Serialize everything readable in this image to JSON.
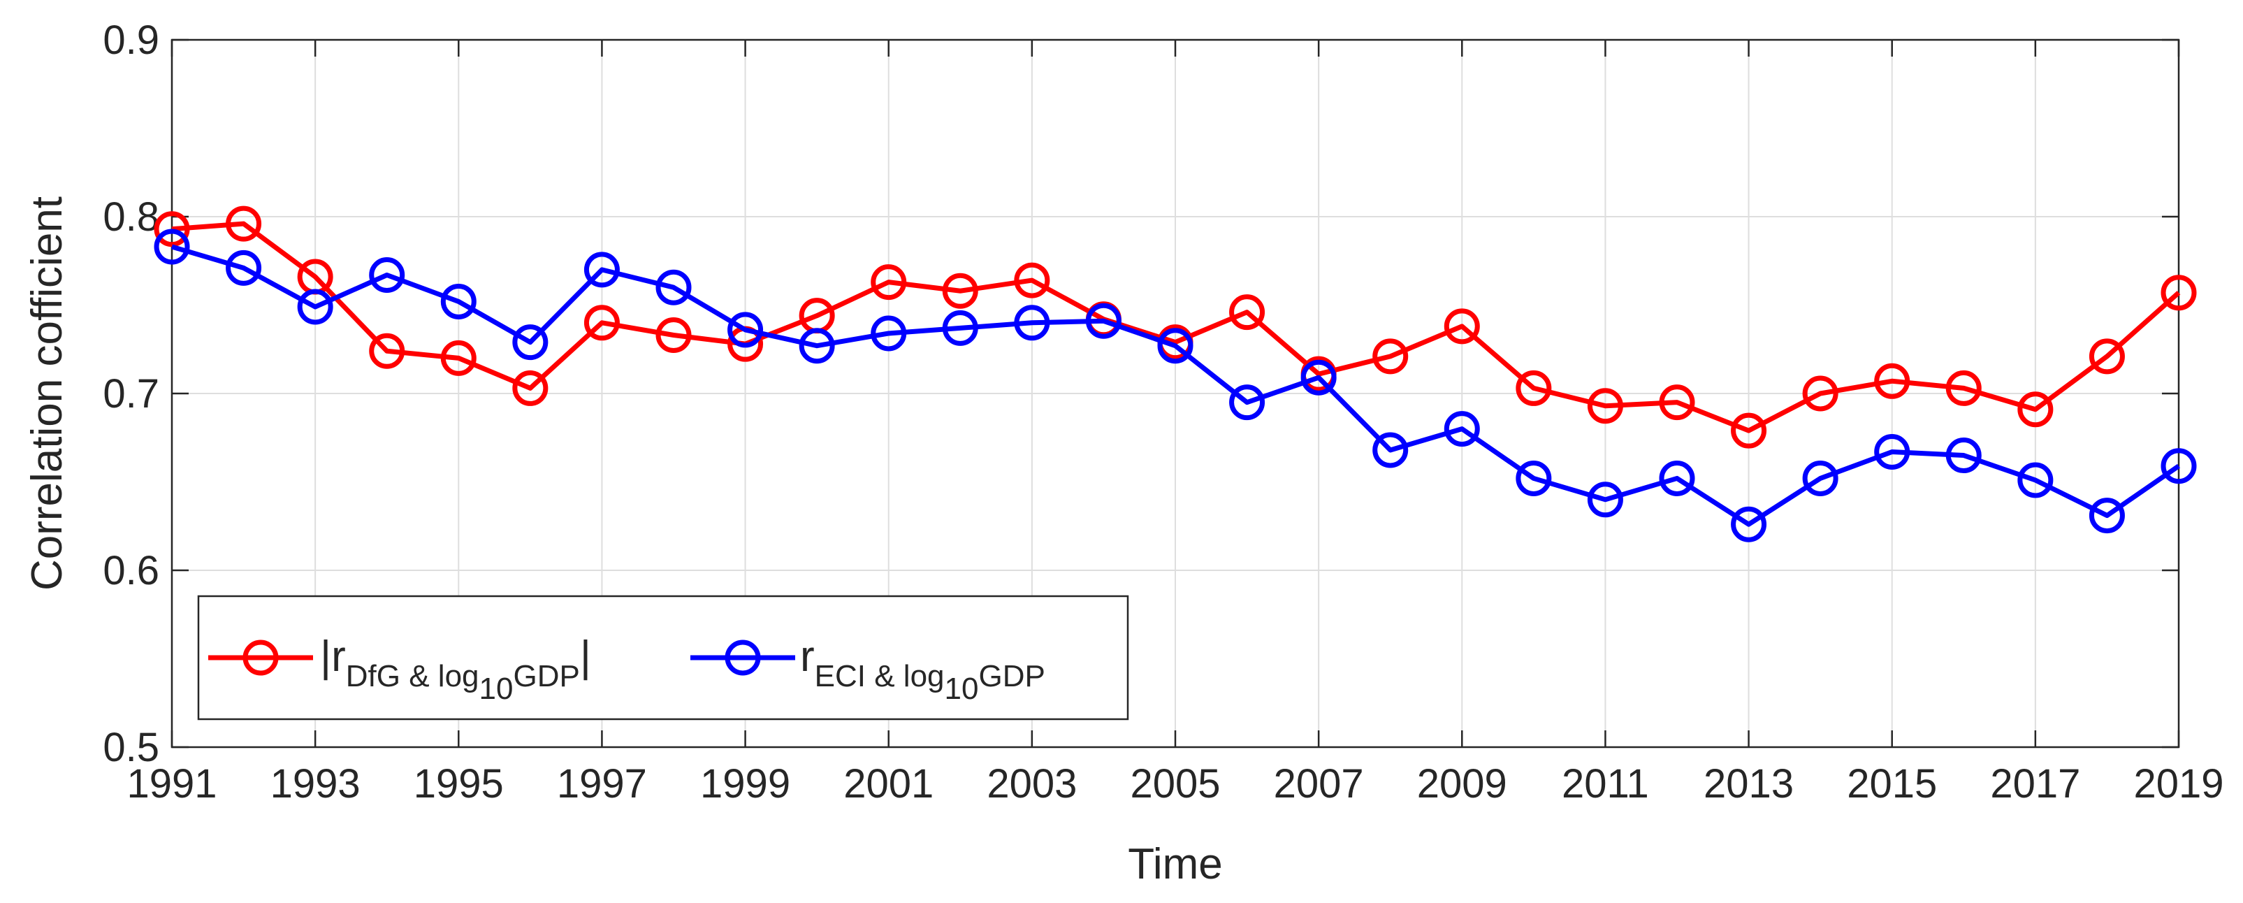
{
  "chart_data": {
    "type": "line",
    "xlabel": "Time",
    "ylabel": "Correlation cofficient",
    "xlim": [
      1991,
      2019
    ],
    "ylim": [
      0.5,
      0.9
    ],
    "grid": true,
    "legend_position": "bottom-left",
    "x": [
      1991,
      1992,
      1993,
      1994,
      1995,
      1996,
      1997,
      1998,
      1999,
      2000,
      2001,
      2002,
      2003,
      2004,
      2005,
      2006,
      2007,
      2008,
      2009,
      2010,
      2011,
      2012,
      2013,
      2014,
      2015,
      2016,
      2017,
      2018,
      2019
    ],
    "x_ticks": [
      "1991",
      "1993",
      "1995",
      "1997",
      "1999",
      "2001",
      "2003",
      "2005",
      "2007",
      "2009",
      "2011",
      "2013",
      "2015",
      "2017",
      "2019"
    ],
    "y_ticks": [
      "0.5",
      "0.6",
      "0.7",
      "0.8",
      "0.9"
    ],
    "series": [
      {
        "name": "|r DfG & log10GDP|",
        "legend": {
          "pre": "|r",
          "sub1": "DfG & log",
          "sub2": "10",
          "mid": "GDP",
          "post": "|"
        },
        "color": "#ff0000",
        "values": [
          0.793,
          0.796,
          0.766,
          0.724,
          0.72,
          0.703,
          0.74,
          0.733,
          0.728,
          0.744,
          0.763,
          0.758,
          0.764,
          0.742,
          0.729,
          0.746,
          0.711,
          0.721,
          0.738,
          0.703,
          0.693,
          0.695,
          0.679,
          0.7,
          0.707,
          0.703,
          0.691,
          0.721,
          0.757
        ]
      },
      {
        "name": "r ECI & log10GDP",
        "legend": {
          "pre": "r",
          "sub1": "ECI & log",
          "sub2": "10",
          "mid": "GDP",
          "post": ""
        },
        "color": "#0000ff",
        "values": [
          0.783,
          0.771,
          0.749,
          0.767,
          0.752,
          0.729,
          0.77,
          0.76,
          0.736,
          0.727,
          0.734,
          0.737,
          0.74,
          0.741,
          0.727,
          0.695,
          0.709,
          0.668,
          0.68,
          0.652,
          0.64,
          0.652,
          0.626,
          0.652,
          0.667,
          0.665,
          0.651,
          0.631,
          0.659
        ]
      }
    ]
  }
}
